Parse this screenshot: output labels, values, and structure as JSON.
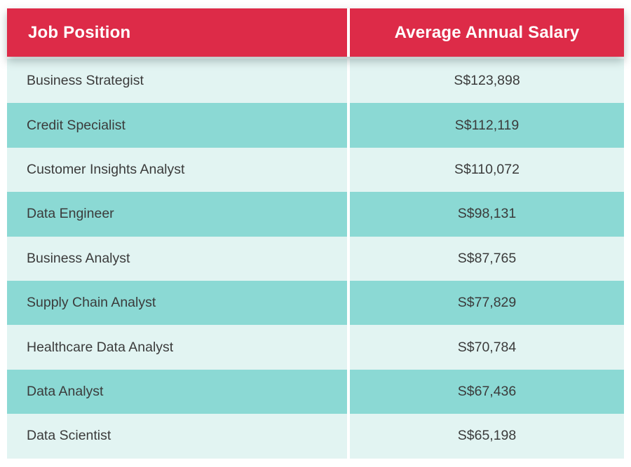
{
  "table": {
    "headers": [
      {
        "label": "Job Position"
      },
      {
        "label": "Average Annual Salary"
      }
    ],
    "rows": [
      {
        "position": "Business Strategist",
        "salary": "S$123,898"
      },
      {
        "position": "Credit Specialist",
        "salary": "S$112,119"
      },
      {
        "position": "Customer Insights Analyst",
        "salary": "S$110,072"
      },
      {
        "position": "Data Engineer",
        "salary": "S$98,131"
      },
      {
        "position": "Business Analyst",
        "salary": "S$87,765"
      },
      {
        "position": "Supply Chain Analyst",
        "salary": "S$77,829"
      },
      {
        "position": "Healthcare Data Analyst",
        "salary": "S$70,784"
      },
      {
        "position": "Data Analyst",
        "salary": "S$67,436"
      },
      {
        "position": "Data Scientist",
        "salary": "S$65,198"
      }
    ]
  },
  "colors": {
    "header_bg": "#dd2b48",
    "header_text": "#ffffff",
    "row_light": "#e2f4f2",
    "row_teal": "#8bd9d4",
    "text": "#3b3b3b",
    "divider": "#ffffff"
  },
  "chart_data": {
    "type": "table",
    "title": "",
    "columns": [
      "Job Position",
      "Average Annual Salary"
    ],
    "rows": [
      [
        "Business Strategist",
        "S$123,898"
      ],
      [
        "Credit Specialist",
        "S$112,119"
      ],
      [
        "Customer Insights Analyst",
        "S$110,072"
      ],
      [
        "Data Engineer",
        "S$98,131"
      ],
      [
        "Business Analyst",
        "S$87,765"
      ],
      [
        "Supply Chain Analyst",
        "S$77,829"
      ],
      [
        "Healthcare Data Analyst",
        "S$70,784"
      ],
      [
        "Data Analyst",
        "S$67,436"
      ],
      [
        "Data Scientist",
        "S$65,198"
      ]
    ],
    "salary_values_sgd": [
      123898,
      112119,
      110072,
      98131,
      87765,
      77829,
      70784,
      67436,
      65198
    ],
    "currency": "S$",
    "layout_hints": {
      "header_style": "red-band-white-bold-text",
      "row_striping": "light-mint / teal alternating starting light",
      "column_2_alignment": "center"
    }
  }
}
